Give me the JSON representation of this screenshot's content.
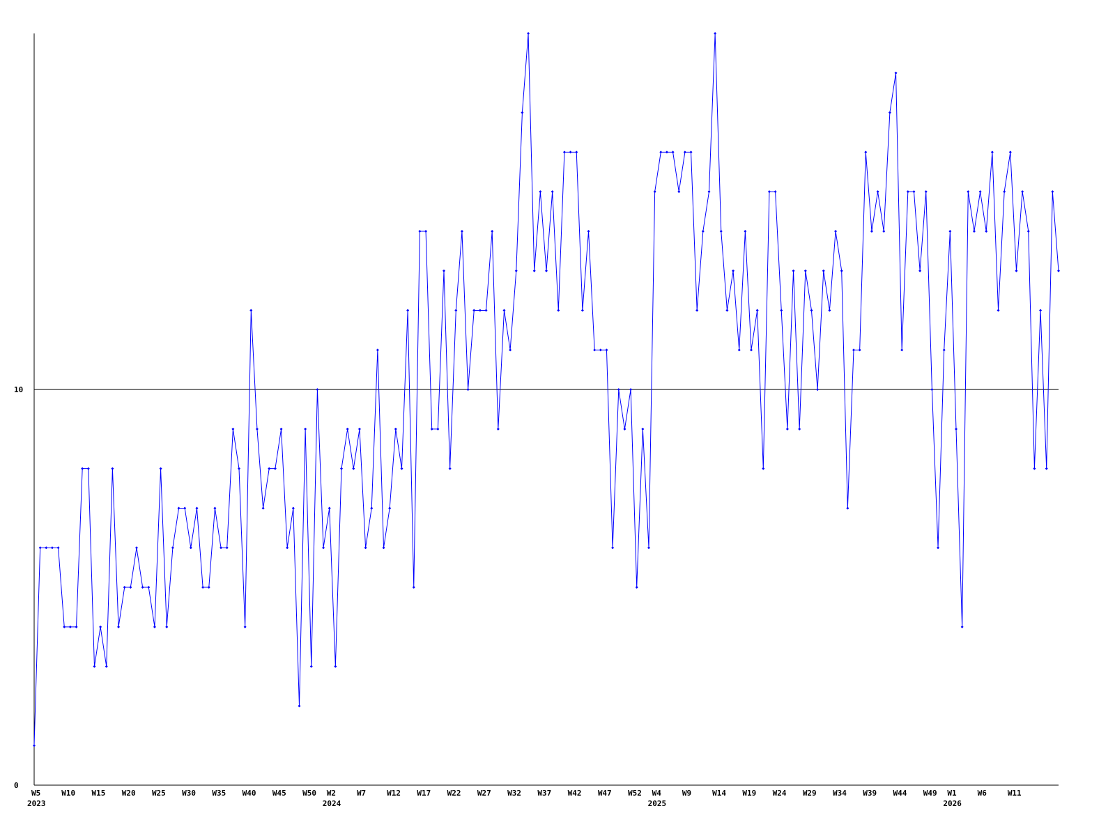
{
  "chart_data": {
    "type": "line",
    "categories": [
      "W5",
      null,
      null,
      null,
      null,
      "W10",
      null,
      null,
      null,
      null,
      "W15",
      null,
      null,
      null,
      null,
      "W20",
      null,
      null,
      null,
      null,
      "W25",
      null,
      null,
      null,
      null,
      "W30",
      null,
      null,
      null,
      null,
      "W35",
      null,
      null,
      null,
      null,
      "W40",
      null,
      null,
      null,
      null,
      "W45",
      null,
      null,
      null,
      null,
      "W50",
      null,
      null,
      null,
      "W2",
      null,
      null,
      null,
      null,
      "W7",
      null,
      null,
      null,
      null,
      "W12",
      null,
      null,
      null,
      null,
      "W17",
      null,
      null,
      null,
      null,
      "W22",
      null,
      null,
      null,
      null,
      "W27",
      null,
      null,
      null,
      null,
      "W32",
      null,
      null,
      null,
      null,
      "W37",
      null,
      null,
      null,
      null,
      "W42",
      null,
      null,
      null,
      null,
      "W47",
      null,
      null,
      null,
      null,
      "W52",
      null,
      null,
      null,
      "W4",
      null,
      null,
      null,
      null,
      "W9",
      null,
      null,
      null,
      null,
      "W14",
      null,
      null,
      null,
      null,
      "W19",
      null,
      null,
      null,
      null,
      "W24",
      null,
      null,
      null,
      null,
      "W29",
      null,
      null,
      null,
      null,
      "W34",
      null,
      null,
      null,
      null,
      "W39",
      null,
      null,
      null,
      null,
      "W44",
      null,
      null,
      null,
      null,
      "W49",
      null,
      null,
      null,
      "W1",
      null,
      null,
      null,
      null,
      "W6",
      null,
      null,
      null,
      null,
      "W11",
      null,
      null,
      null,
      null,
      null,
      null,
      null,
      null
    ],
    "year_labels": [
      "2023",
      null,
      null,
      null,
      null,
      null,
      null,
      null,
      null,
      null,
      null,
      null,
      null,
      null,
      null,
      null,
      null,
      null,
      null,
      null,
      null,
      null,
      null,
      null,
      null,
      null,
      null,
      null,
      null,
      null,
      null,
      null,
      null,
      null,
      null,
      null,
      null,
      null,
      null,
      null,
      null,
      null,
      null,
      null,
      null,
      null,
      null,
      null,
      null,
      "2024",
      null,
      null,
      null,
      null,
      null,
      null,
      null,
      null,
      null,
      null,
      null,
      null,
      null,
      null,
      null,
      null,
      null,
      null,
      null,
      null,
      null,
      null,
      null,
      null,
      null,
      null,
      null,
      null,
      null,
      null,
      null,
      null,
      null,
      null,
      null,
      null,
      null,
      null,
      null,
      null,
      null,
      null,
      null,
      null,
      null,
      null,
      null,
      null,
      null,
      null,
      null,
      null,
      null,
      "2025",
      null,
      null,
      null,
      null,
      null,
      null,
      null,
      null,
      null,
      null,
      null,
      null,
      null,
      null,
      null,
      null,
      null,
      null,
      null,
      null,
      null,
      null,
      null,
      null,
      null,
      null,
      null,
      null,
      null,
      null,
      null,
      null,
      null,
      null,
      null,
      null,
      null,
      null,
      null,
      null,
      null,
      null,
      null,
      null,
      null,
      null,
      null,
      null,
      "2026",
      null,
      null,
      null,
      null,
      null,
      null,
      null,
      null,
      null,
      null,
      null,
      null,
      null,
      null,
      null,
      null,
      null,
      null
    ],
    "series": [
      {
        "color": "#0000ff",
        "values": [
          1,
          6,
          6,
          6,
          6,
          4,
          4,
          4,
          8,
          8,
          3,
          4,
          3,
          8,
          4,
          5,
          5,
          6,
          5,
          5,
          4,
          8,
          4,
          6,
          7,
          7,
          6,
          7,
          5,
          5,
          7,
          6,
          6,
          9,
          8,
          4,
          12,
          9,
          7,
          8,
          8,
          9,
          6,
          7,
          2,
          9,
          3,
          10,
          6,
          7,
          3,
          8,
          9,
          8,
          9,
          6,
          7,
          11,
          6,
          7,
          9,
          8,
          12,
          5,
          14,
          14,
          9,
          9,
          13,
          8,
          12,
          14,
          10,
          12,
          12,
          12,
          14,
          9,
          12,
          11,
          13,
          17,
          19,
          13,
          15,
          13,
          15,
          12,
          16,
          16,
          16,
          12,
          14,
          11,
          11,
          11,
          6,
          10,
          9,
          10,
          5,
          9,
          6,
          15,
          16,
          16,
          16,
          15,
          16,
          16,
          12,
          14,
          15,
          19,
          14,
          12,
          13,
          11,
          14,
          11,
          12,
          8,
          15,
          15,
          12,
          9,
          13,
          9,
          13,
          12,
          10,
          13,
          12,
          14,
          13,
          7,
          11,
          11,
          16,
          14,
          15,
          14,
          17,
          18,
          11,
          15,
          15,
          13,
          15,
          10,
          6,
          11,
          14,
          9,
          4,
          15,
          14,
          15,
          14,
          16,
          12,
          15,
          16,
          13,
          15,
          14,
          8,
          12,
          8,
          15,
          13
        ]
      }
    ],
    "ylim": [
      0,
      19
    ],
    "yticks": [
      0,
      10
    ],
    "grid": true
  }
}
